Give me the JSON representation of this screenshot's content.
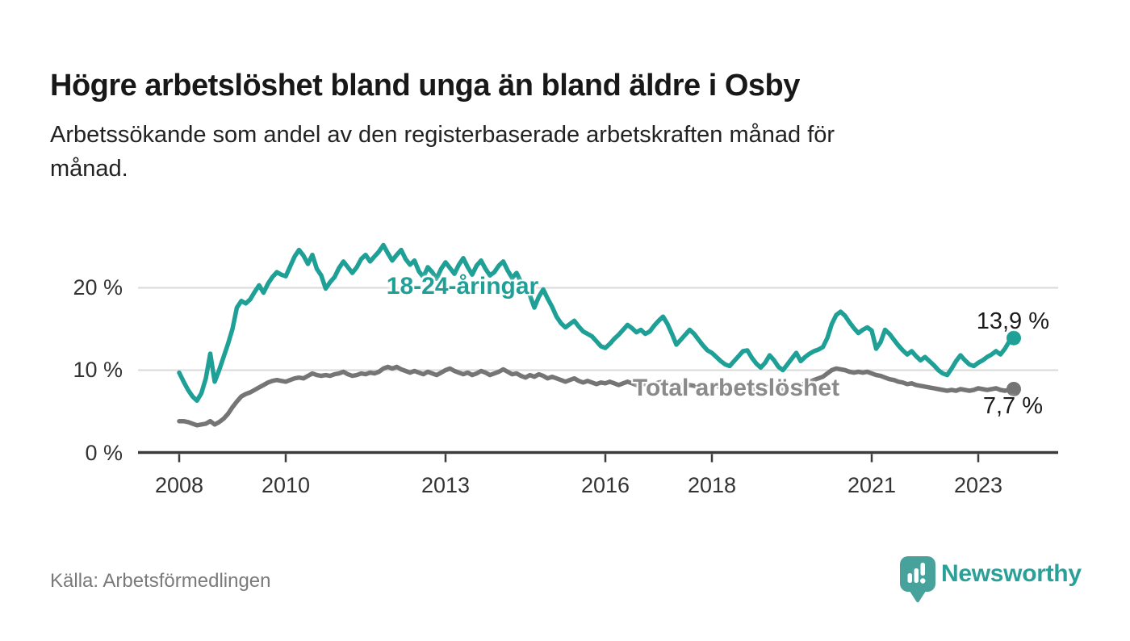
{
  "header": {
    "title": "Högre arbetslöshet bland unga än bland äldre i Osby",
    "subtitle_line1": "Arbetssökande som andel av den registerbaserade arbetskraften månad för",
    "subtitle_line2": "månad."
  },
  "footer": {
    "source": "Källa: Arbetsförmedlingen",
    "brand": "Newsworthy"
  },
  "colors": {
    "accent_teal": "#1fa097",
    "series_gray": "#757575",
    "grid": "#d9d9d9",
    "axis": "#3b3b3b",
    "logo_teal": "#46a29a",
    "wordmark_teal": "#2aa098"
  },
  "chart_data": {
    "type": "line",
    "title": "Högre arbetslöshet bland unga än bland äldre i Osby",
    "subtitle": "Arbetssökande som andel av den registerbaserade arbetskraften månad för månad.",
    "unit": "%",
    "frequency": "monthly",
    "start": "2008-01",
    "end": "2023-09",
    "xlabel": "",
    "ylabel": "",
    "x_tick_years": [
      2008,
      2010,
      2013,
      2016,
      2018,
      2021,
      2023
    ],
    "x_tick_labels": [
      "2008",
      "2010",
      "2013",
      "2016",
      "2018",
      "2021",
      "2023"
    ],
    "y_ticks": [
      0,
      10,
      20
    ],
    "y_tick_labels": [
      "0 %",
      "10 %",
      "20 %"
    ],
    "ylim": [
      0,
      26
    ],
    "x_range_years": [
      2008.0,
      2024.5
    ],
    "grid": "horizontal-only",
    "legend": "inline-labels",
    "series": [
      {
        "name": "Total arbetslöshet",
        "color": "#757575",
        "end_label": "7,7 %",
        "end_value": 7.7,
        "values": [
          3.8,
          3.8,
          3.7,
          3.5,
          3.3,
          3.4,
          3.5,
          3.8,
          3.4,
          3.7,
          4.1,
          4.7,
          5.5,
          6.2,
          6.8,
          7.1,
          7.3,
          7.6,
          7.9,
          8.2,
          8.5,
          8.7,
          8.8,
          8.7,
          8.6,
          8.8,
          9.0,
          9.1,
          9.0,
          9.3,
          9.6,
          9.4,
          9.3,
          9.4,
          9.3,
          9.5,
          9.6,
          9.8,
          9.5,
          9.3,
          9.4,
          9.6,
          9.5,
          9.7,
          9.6,
          9.8,
          10.2,
          10.4,
          10.2,
          10.4,
          10.1,
          9.9,
          9.7,
          9.9,
          9.7,
          9.5,
          9.8,
          9.6,
          9.4,
          9.7,
          10.0,
          10.2,
          9.9,
          9.7,
          9.5,
          9.7,
          9.4,
          9.6,
          9.9,
          9.7,
          9.4,
          9.6,
          9.8,
          10.1,
          9.8,
          9.5,
          9.6,
          9.3,
          9.1,
          9.4,
          9.2,
          9.5,
          9.3,
          9.0,
          9.2,
          9.0,
          8.8,
          8.6,
          8.8,
          9.0,
          8.7,
          8.5,
          8.7,
          8.5,
          8.3,
          8.5,
          8.4,
          8.6,
          8.4,
          8.2,
          8.4,
          8.6,
          8.4,
          8.2,
          8.4,
          8.3,
          8.1,
          8.3,
          8.5,
          8.6,
          8.4,
          8.2,
          8.0,
          8.2,
          8.0,
          8.2,
          8.1,
          7.9,
          7.7,
          7.9,
          8.0,
          8.1,
          7.9,
          7.7,
          7.5,
          7.7,
          7.9,
          8.1,
          7.9,
          7.7,
          7.6,
          7.8,
          8.0,
          8.1,
          7.9,
          7.8,
          7.7,
          7.9,
          8.1,
          8.3,
          8.2,
          8.4,
          8.6,
          8.8,
          9.0,
          9.2,
          9.6,
          10.0,
          10.2,
          10.1,
          10.0,
          9.8,
          9.7,
          9.8,
          9.7,
          9.8,
          9.6,
          9.4,
          9.3,
          9.1,
          8.9,
          8.8,
          8.6,
          8.5,
          8.3,
          8.4,
          8.2,
          8.1,
          8.0,
          7.9,
          7.8,
          7.7,
          7.6,
          7.5,
          7.6,
          7.5,
          7.7,
          7.6,
          7.5,
          7.6,
          7.8,
          7.7,
          7.6,
          7.7,
          7.8,
          7.6,
          7.5,
          7.6,
          7.7
        ]
      },
      {
        "name": "18-24-åringar",
        "color": "#1fa097",
        "end_label": "13,9 %",
        "end_value": 13.9,
        "values": [
          9.7,
          8.6,
          7.6,
          6.8,
          6.3,
          7.2,
          9.0,
          12.0,
          8.6,
          10.0,
          11.6,
          13.2,
          15.0,
          17.6,
          18.4,
          18.1,
          18.6,
          19.5,
          20.3,
          19.4,
          20.5,
          21.3,
          21.9,
          21.6,
          21.4,
          22.6,
          23.8,
          24.6,
          23.9,
          22.9,
          24.0,
          22.3,
          21.5,
          19.9,
          20.7,
          21.3,
          22.4,
          23.2,
          22.5,
          21.8,
          22.5,
          23.5,
          24.0,
          23.2,
          23.8,
          24.4,
          25.2,
          24.2,
          23.3,
          24.0,
          24.6,
          23.5,
          22.8,
          23.3,
          22.0,
          21.3,
          22.5,
          21.9,
          21.1,
          22.3,
          23.1,
          22.4,
          21.7,
          22.8,
          23.6,
          22.5,
          21.6,
          22.7,
          23.3,
          22.3,
          21.5,
          21.9,
          22.7,
          23.2,
          22.1,
          21.2,
          21.8,
          20.7,
          20.0,
          19.1,
          17.6,
          18.9,
          19.8,
          18.7,
          17.7,
          16.5,
          15.7,
          15.2,
          15.6,
          16.0,
          15.3,
          14.7,
          14.4,
          14.1,
          13.5,
          12.9,
          12.7,
          13.2,
          13.8,
          14.3,
          14.9,
          15.5,
          15.1,
          14.6,
          14.9,
          14.4,
          14.7,
          15.4,
          16.0,
          16.5,
          15.6,
          14.4,
          13.1,
          13.7,
          14.3,
          14.9,
          14.4,
          13.7,
          13.0,
          12.4,
          12.1,
          11.6,
          11.1,
          10.7,
          10.5,
          11.1,
          11.7,
          12.3,
          12.4,
          11.5,
          10.8,
          10.3,
          10.9,
          11.8,
          11.2,
          10.4,
          10.0,
          10.7,
          11.4,
          12.1,
          11.1,
          11.6,
          12.0,
          12.3,
          12.5,
          12.8,
          13.9,
          15.6,
          16.7,
          17.1,
          16.6,
          15.8,
          15.1,
          14.5,
          14.9,
          15.2,
          14.8,
          12.6,
          13.4,
          14.9,
          14.4,
          13.7,
          13.0,
          12.4,
          11.9,
          12.3,
          11.7,
          11.2,
          11.6,
          11.1,
          10.6,
          10.0,
          9.6,
          9.4,
          10.2,
          11.1,
          11.8,
          11.2,
          10.7,
          10.5,
          10.9,
          11.2,
          11.6,
          11.9,
          12.3,
          11.9,
          12.6,
          13.5,
          13.9
        ]
      }
    ]
  }
}
